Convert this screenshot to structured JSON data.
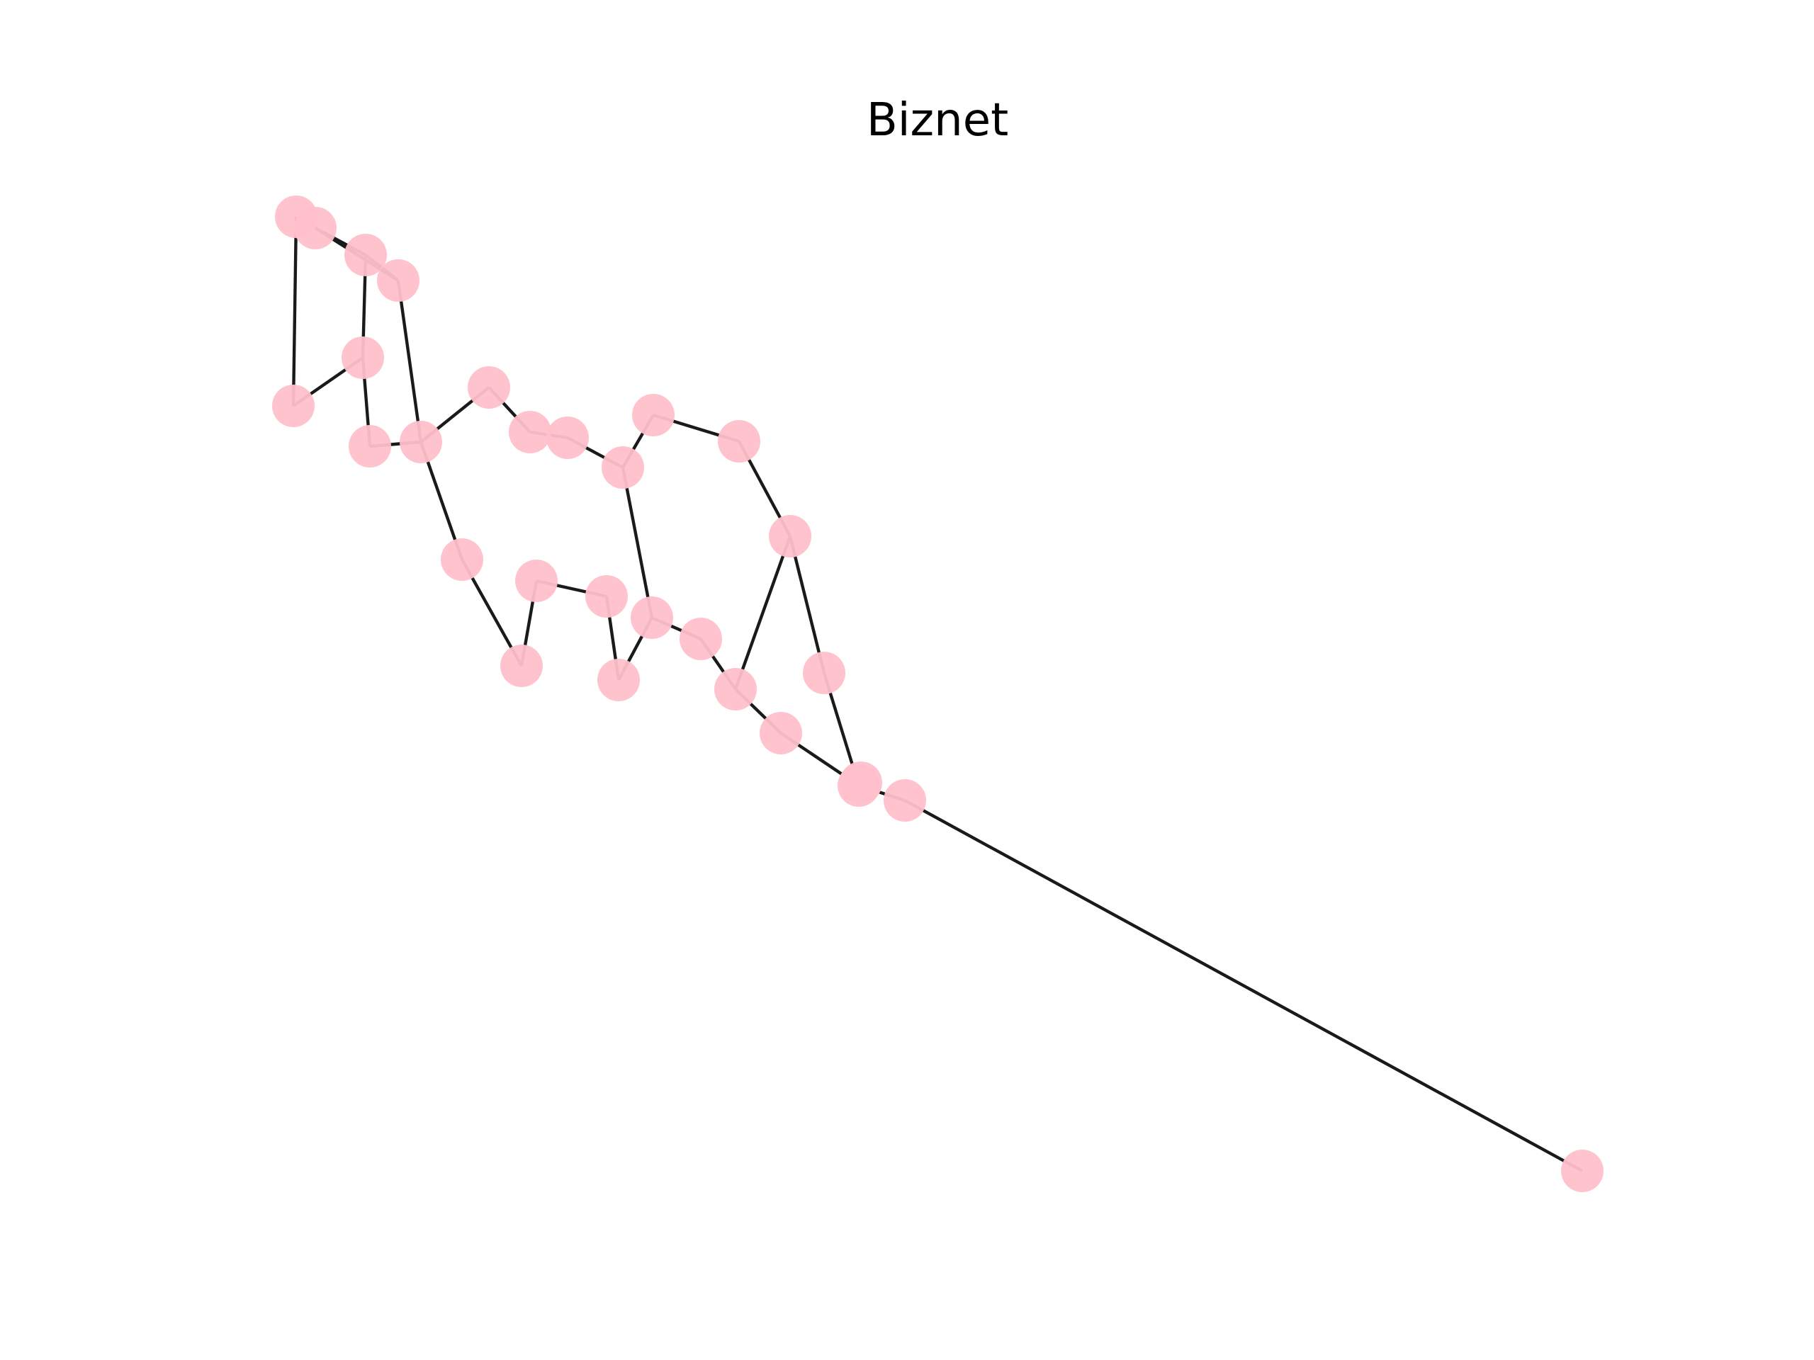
{
  "title": "Biznet",
  "node_color": "#ffc0cb",
  "edge_color": "#1a1a1a",
  "background": "#ffffff",
  "graph": {
    "nodes": [
      {
        "id": "n1"
      },
      {
        "id": "n2"
      },
      {
        "id": "n3"
      },
      {
        "id": "n4"
      },
      {
        "id": "n5"
      },
      {
        "id": "n6"
      },
      {
        "id": "n7"
      },
      {
        "id": "n8"
      },
      {
        "id": "n9"
      },
      {
        "id": "n10"
      },
      {
        "id": "n11"
      },
      {
        "id": "n12"
      },
      {
        "id": "n13"
      },
      {
        "id": "n14"
      },
      {
        "id": "n15"
      },
      {
        "id": "n16"
      },
      {
        "id": "n17"
      },
      {
        "id": "n18"
      },
      {
        "id": "n19"
      },
      {
        "id": "n20"
      },
      {
        "id": "n21"
      },
      {
        "id": "n22"
      },
      {
        "id": "n23"
      },
      {
        "id": "n24"
      },
      {
        "id": "n25"
      },
      {
        "id": "n26"
      },
      {
        "id": "n27"
      },
      {
        "id": "n28"
      },
      {
        "id": "n29"
      }
    ],
    "edges": [
      [
        "n1",
        "n6"
      ],
      [
        "n6",
        "n5"
      ],
      [
        "n5",
        "n3"
      ],
      [
        "n3",
        "n2"
      ],
      [
        "n2",
        "n4"
      ],
      [
        "n5",
        "n7"
      ],
      [
        "n7",
        "n8"
      ],
      [
        "n4",
        "n8"
      ],
      [
        "n8",
        "n9"
      ],
      [
        "n9",
        "n10"
      ],
      [
        "n10",
        "n11"
      ],
      [
        "n11",
        "n12"
      ],
      [
        "n12",
        "n13"
      ],
      [
        "n13",
        "n14"
      ],
      [
        "n14",
        "n15"
      ],
      [
        "n15",
        "n16"
      ],
      [
        "n16",
        "n17"
      ],
      [
        "n16",
        "n18"
      ],
      [
        "n12",
        "n19"
      ],
      [
        "n19",
        "n20"
      ],
      [
        "n20",
        "n21"
      ],
      [
        "n21",
        "n22"
      ],
      [
        "n22",
        "n23"
      ],
      [
        "n23",
        "n24"
      ],
      [
        "n8",
        "n25"
      ],
      [
        "n25",
        "n26"
      ],
      [
        "n26",
        "n27"
      ],
      [
        "n27",
        "n28"
      ],
      [
        "n28",
        "n19"
      ],
      [
        "n18",
        "n22"
      ],
      [
        "n17",
        "n23"
      ],
      [
        "n23",
        "n29"
      ]
    ]
  }
}
